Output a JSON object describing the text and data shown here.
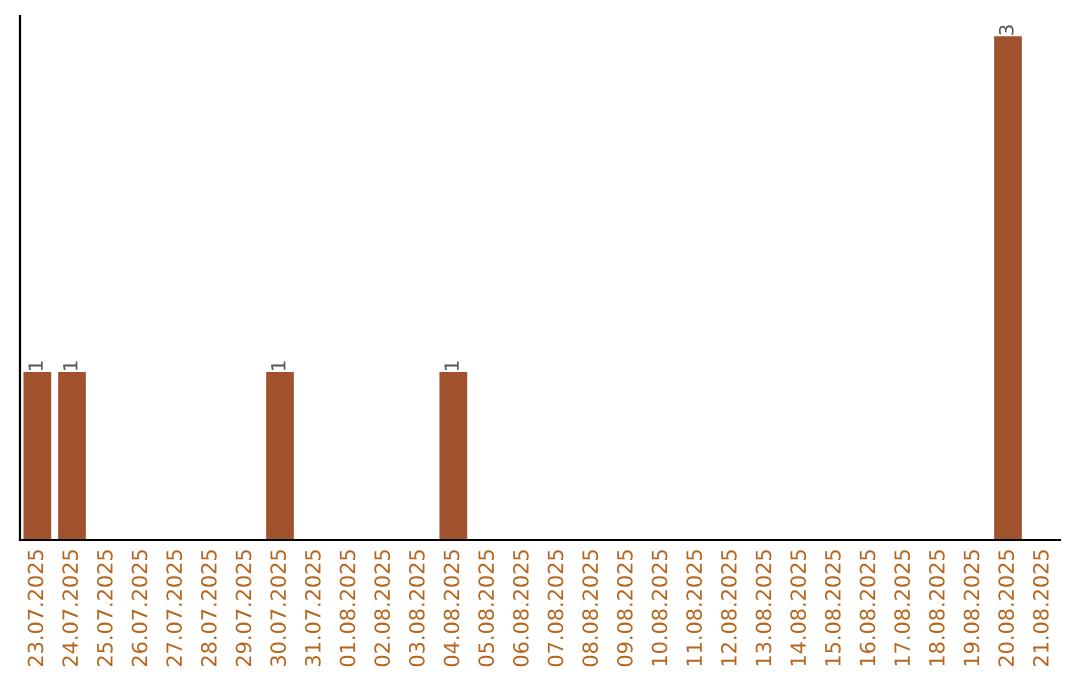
{
  "chart_data": {
    "type": "bar",
    "categories": [
      "23.07.2025",
      "24.07.2025",
      "25.07.2025",
      "26.07.2025",
      "27.07.2025",
      "28.07.2025",
      "29.07.2025",
      "30.07.2025",
      "31.07.2025",
      "01.08.2025",
      "02.08.2025",
      "03.08.2025",
      "04.08.2025",
      "05.08.2025",
      "06.08.2025",
      "07.08.2025",
      "08.08.2025",
      "09.08.2025",
      "10.08.2025",
      "11.08.2025",
      "12.08.2025",
      "13.08.2025",
      "14.08.2025",
      "15.08.2025",
      "16.08.2025",
      "17.08.2025",
      "18.08.2025",
      "19.08.2025",
      "20.08.2025",
      "21.08.2025"
    ],
    "values": [
      1,
      1,
      0,
      0,
      0,
      0,
      0,
      1,
      0,
      0,
      0,
      0,
      1,
      0,
      0,
      0,
      0,
      0,
      0,
      0,
      0,
      0,
      0,
      0,
      0,
      0,
      0,
      0,
      3,
      0
    ],
    "value_labels": [
      "1",
      "1",
      null,
      null,
      null,
      null,
      null,
      "1",
      null,
      null,
      null,
      null,
      "1",
      null,
      null,
      null,
      null,
      null,
      null,
      null,
      null,
      null,
      null,
      null,
      null,
      null,
      null,
      null,
      "3",
      null
    ],
    "color": "#a0522d",
    "tick_labels": "x",
    "grid": false,
    "legend": false
  }
}
